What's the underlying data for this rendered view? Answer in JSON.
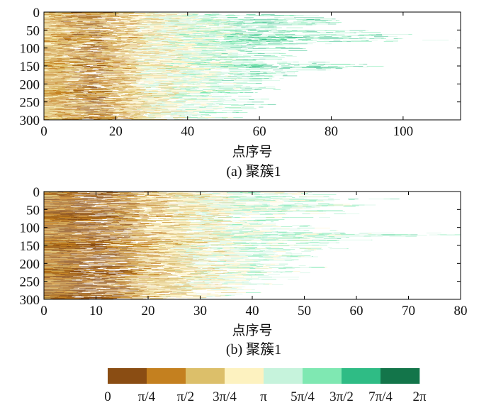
{
  "chart_data": [
    {
      "type": "heatmap",
      "caption": "(a) 聚簇1",
      "xlabel": "点序号",
      "ylabel": "",
      "xlim": [
        0,
        116
      ],
      "ylim": [
        0,
        300
      ],
      "y_inverted": true,
      "xticks": [
        0,
        20,
        40,
        60,
        80,
        100
      ],
      "yticks": [
        0,
        50,
        100,
        150,
        200,
        250,
        300
      ],
      "rows": 300,
      "row_length_profile": [
        {
          "row": 0,
          "length": 55
        },
        {
          "row": 10,
          "length": 72
        },
        {
          "row": 20,
          "length": 85
        },
        {
          "row": 40,
          "length": 70
        },
        {
          "row": 60,
          "length": 98
        },
        {
          "row": 75,
          "length": 116
        },
        {
          "row": 90,
          "length": 72
        },
        {
          "row": 110,
          "length": 68
        },
        {
          "row": 130,
          "length": 66
        },
        {
          "row": 150,
          "length": 95
        },
        {
          "row": 165,
          "length": 70
        },
        {
          "row": 200,
          "length": 64
        },
        {
          "row": 240,
          "length": 62
        },
        {
          "row": 270,
          "length": 58
        },
        {
          "row": 300,
          "length": 52
        }
      ],
      "dominant_phase_by_point": [
        {
          "point": 0,
          "phase": "π/2"
        },
        {
          "point": 15,
          "phase": "π/4"
        },
        {
          "point": 30,
          "phase": "3π/4"
        },
        {
          "point": 45,
          "phase": "π"
        },
        {
          "point": 60,
          "phase": "5π/4"
        },
        {
          "point": 116,
          "phase": "5π/4"
        }
      ]
    },
    {
      "type": "heatmap",
      "caption": "(b) 聚簇1",
      "xlabel": "点序号",
      "ylabel": "",
      "xlim": [
        0,
        80
      ],
      "ylim": [
        0,
        300
      ],
      "y_inverted": true,
      "xticks": [
        0,
        10,
        20,
        30,
        40,
        50,
        60,
        70,
        80
      ],
      "yticks": [
        0,
        50,
        100,
        150,
        200,
        250,
        300
      ],
      "rows": 300,
      "row_length_profile": [
        {
          "row": 0,
          "length": 48
        },
        {
          "row": 15,
          "length": 64
        },
        {
          "row": 35,
          "length": 60
        },
        {
          "row": 60,
          "length": 56
        },
        {
          "row": 85,
          "length": 52
        },
        {
          "row": 110,
          "length": 56
        },
        {
          "row": 118,
          "length": 80
        },
        {
          "row": 140,
          "length": 55
        },
        {
          "row": 170,
          "length": 52
        },
        {
          "row": 200,
          "length": 50
        },
        {
          "row": 230,
          "length": 50
        },
        {
          "row": 260,
          "length": 44
        },
        {
          "row": 285,
          "length": 38
        },
        {
          "row": 300,
          "length": 30
        }
      ],
      "dominant_phase_by_point": [
        {
          "point": 0,
          "phase": "π/4"
        },
        {
          "point": 10,
          "phase": "0"
        },
        {
          "point": 20,
          "phase": "π/2"
        },
        {
          "point": 30,
          "phase": "3π/4"
        },
        {
          "point": 40,
          "phase": "π"
        },
        {
          "point": 80,
          "phase": "5π/4"
        }
      ]
    }
  ],
  "colorbar": {
    "labels": [
      "0",
      "π/4",
      "π/2",
      "3π/4",
      "π",
      "5π/4",
      "3π/2",
      "7π/4",
      "2π"
    ],
    "colors": [
      "#8a4d13",
      "#c4801f",
      "#dcbf6a",
      "#fdf2c0",
      "#c6f3dc",
      "#7fe8b2",
      "#2fbc85",
      "#13754a"
    ]
  }
}
